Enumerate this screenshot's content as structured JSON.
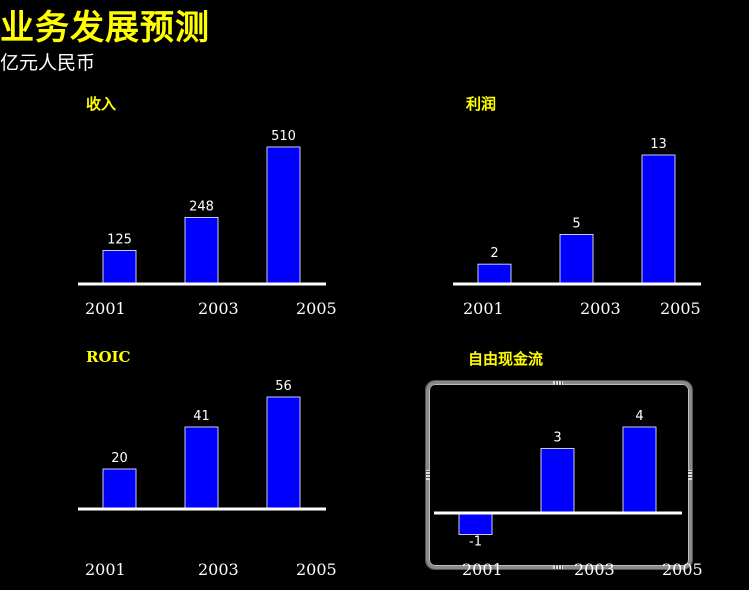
{
  "page": {
    "title": "业务发展预测",
    "unit": "亿元人民币"
  },
  "colors": {
    "bar": "#0000ff",
    "title": "#ffff00",
    "axis": "#ffffff",
    "background": "#000000"
  },
  "chart_data": [
    {
      "id": "revenue",
      "type": "bar",
      "title": "收入",
      "categories": [
        "2001",
        "2003",
        "2005"
      ],
      "values": [
        125,
        248,
        510
      ],
      "ylim": [
        0,
        510
      ]
    },
    {
      "id": "profit",
      "type": "bar",
      "title": "利润",
      "categories": [
        "2001",
        "2003",
        "2005"
      ],
      "values": [
        2,
        5,
        13
      ],
      "ylim": [
        0,
        13
      ]
    },
    {
      "id": "roic",
      "type": "bar",
      "title": "ROIC",
      "categories": [
        "2001",
        "2003",
        "2005"
      ],
      "values": [
        20,
        41,
        56
      ],
      "ylim": [
        0,
        56
      ]
    },
    {
      "id": "free-cash-flow",
      "type": "bar",
      "title": "自由现金流",
      "categories": [
        "2001",
        "2003",
        "2005"
      ],
      "values": [
        -1,
        3,
        4
      ],
      "ylim": [
        -1,
        4
      ]
    }
  ]
}
